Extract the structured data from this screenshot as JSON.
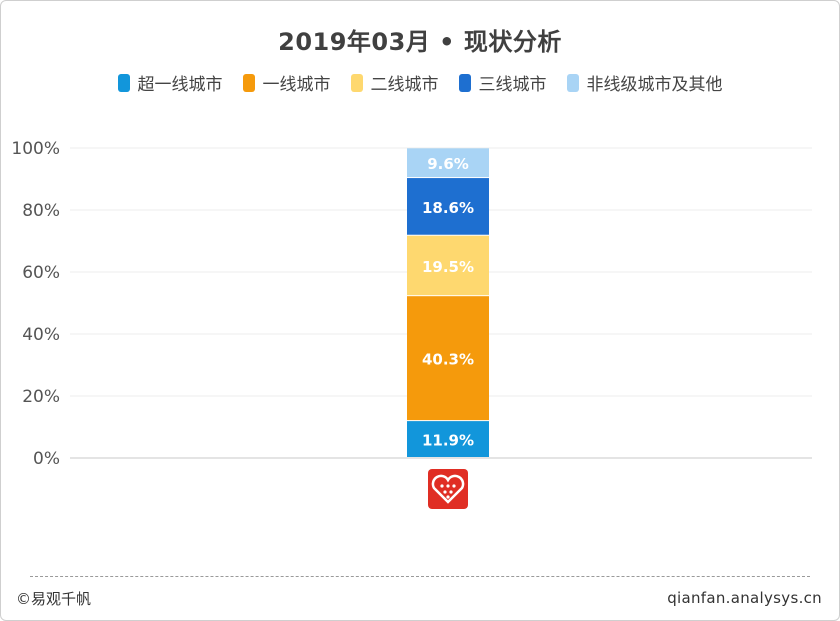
{
  "chart_data": {
    "type": "bar",
    "stacked": true,
    "title": "2019年03月 • 现状分析",
    "categories": [
      ""
    ],
    "series": [
      {
        "name": "超一线城市",
        "color": "#1296db",
        "values": [
          11.9
        ]
      },
      {
        "name": "一线城市",
        "color": "#f59a0c",
        "values": [
          40.3
        ]
      },
      {
        "name": "二线城市",
        "color": "#fed86f",
        "values": [
          19.5
        ]
      },
      {
        "name": "三线城市",
        "color": "#1e6fd0",
        "values": [
          18.6
        ]
      },
      {
        "name": "非线级城市及其他",
        "color": "#a9d4f5",
        "values": [
          9.6
        ]
      }
    ],
    "value_labels": [
      "11.9%",
      "40.3%",
      "19.5%",
      "18.6%",
      "9.6%"
    ],
    "y_ticks": [
      "0%",
      "20%",
      "40%",
      "60%",
      "80%",
      "100%"
    ],
    "ylim": [
      0,
      100
    ],
    "grid": true,
    "legend_position": "top"
  },
  "category_icon": {
    "name": "pinduoduo-logo-icon",
    "color": "#e02e24"
  },
  "footer": {
    "left": "©易观千帆",
    "right": "qianfan.analysys.cn"
  }
}
